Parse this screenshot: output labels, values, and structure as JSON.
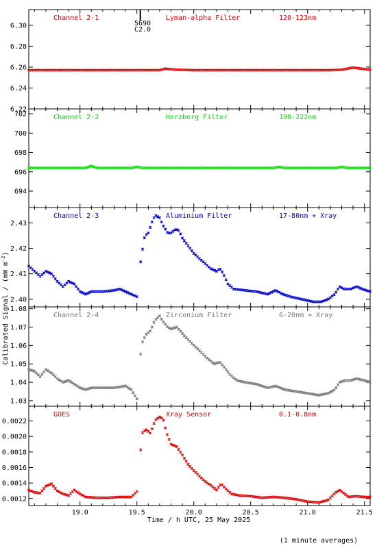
{
  "chart_data": {
    "type": "scatter",
    "xlabel": "Time / h UTC, 25 May 2025",
    "ylabel": "Calibrated Signal / (mW m",
    "ylabel_sup": "-2",
    "ylabel_close": ")",
    "footnote": "(1 minute averages)",
    "xlim": [
      18.55,
      21.55
    ],
    "x_ticks": [
      "19.0",
      "19.5",
      "20.0",
      "20.5",
      "21.0",
      "21.5"
    ],
    "x_tick_values": [
      19.0,
      19.5,
      20.0,
      20.5,
      21.0,
      21.5
    ],
    "marker": {
      "top": "5690",
      "bottom": "C2.0",
      "x": 19.53
    },
    "panels": [
      {
        "channel": "Channel 2-1",
        "filter": "Lyman-alpha Filter",
        "band": "120-123nm",
        "color": "#dd0000",
        "ylim": [
          6.22,
          6.315
        ],
        "y_ticks": [
          "6.22",
          "6.24",
          "6.26",
          "6.28",
          "6.30"
        ],
        "y_tick_values": [
          6.22,
          6.24,
          6.26,
          6.28,
          6.3
        ],
        "points": [
          [
            18.55,
            6.257
          ],
          [
            18.8,
            6.257
          ],
          [
            19.0,
            6.257
          ],
          [
            19.5,
            6.257
          ],
          [
            19.7,
            6.257
          ],
          [
            19.75,
            6.2585
          ],
          [
            19.85,
            6.2575
          ],
          [
            20.0,
            6.257
          ],
          [
            20.5,
            6.257
          ],
          [
            21.0,
            6.257
          ],
          [
            21.2,
            6.257
          ],
          [
            21.3,
            6.2575
          ],
          [
            21.4,
            6.2595
          ],
          [
            21.47,
            6.2585
          ],
          [
            21.55,
            6.2575
          ]
        ]
      },
      {
        "channel": "Channel 2-2",
        "filter": "Herzberg Filter",
        "band": "190-222nm",
        "color": "#00dd00",
        "ylim": [
          692.3,
          702.5
        ],
        "y_ticks": [
          "694",
          "696",
          "698",
          "700",
          "702"
        ],
        "y_tick_values": [
          694,
          696,
          698,
          700,
          702
        ],
        "points": [
          [
            18.55,
            696.4
          ],
          [
            19.05,
            696.4
          ],
          [
            19.1,
            696.6
          ],
          [
            19.15,
            696.4
          ],
          [
            19.45,
            696.4
          ],
          [
            19.5,
            696.5
          ],
          [
            19.55,
            696.4
          ],
          [
            20.0,
            696.4
          ],
          [
            20.7,
            696.4
          ],
          [
            20.75,
            696.5
          ],
          [
            20.8,
            696.4
          ],
          [
            21.25,
            696.4
          ],
          [
            21.3,
            696.5
          ],
          [
            21.35,
            696.4
          ],
          [
            21.55,
            696.4
          ]
        ]
      },
      {
        "channel": "Channel 2-3",
        "filter": "Aluminium Filter",
        "band": "17-80nm + Xray",
        "color": "#0000cc",
        "ylim": [
          2.397,
          2.436
        ],
        "y_ticks": [
          "2.40",
          "2.41",
          "2.42",
          "2.43"
        ],
        "y_tick_values": [
          2.4,
          2.41,
          2.42,
          2.43
        ],
        "gap": [
          19.5,
          19.52
        ],
        "points": [
          [
            18.55,
            2.413
          ],
          [
            18.6,
            2.411
          ],
          [
            18.65,
            2.409
          ],
          [
            18.7,
            2.411
          ],
          [
            18.75,
            2.41
          ],
          [
            18.8,
            2.407
          ],
          [
            18.85,
            2.405
          ],
          [
            18.9,
            2.407
          ],
          [
            18.95,
            2.406
          ],
          [
            19.0,
            2.403
          ],
          [
            19.05,
            2.402
          ],
          [
            19.1,
            2.403
          ],
          [
            19.2,
            2.403
          ],
          [
            19.3,
            2.4035
          ],
          [
            19.35,
            2.404
          ],
          [
            19.4,
            2.403
          ],
          [
            19.45,
            2.402
          ],
          [
            19.5,
            2.401
          ],
          [
            19.52,
            2.41
          ],
          [
            19.54,
            2.417
          ],
          [
            19.57,
            2.425
          ],
          [
            19.6,
            2.426
          ],
          [
            19.63,
            2.43
          ],
          [
            19.66,
            2.433
          ],
          [
            19.7,
            2.432
          ],
          [
            19.73,
            2.429
          ],
          [
            19.77,
            2.426
          ],
          [
            19.8,
            2.426
          ],
          [
            19.84,
            2.4275
          ],
          [
            19.87,
            2.427
          ],
          [
            19.9,
            2.424
          ],
          [
            19.95,
            2.421
          ],
          [
            20.0,
            2.418
          ],
          [
            20.05,
            2.416
          ],
          [
            20.1,
            2.414
          ],
          [
            20.15,
            2.412
          ],
          [
            20.2,
            2.411
          ],
          [
            20.23,
            2.412
          ],
          [
            20.26,
            2.41
          ],
          [
            20.3,
            2.406
          ],
          [
            20.35,
            2.404
          ],
          [
            20.45,
            2.4035
          ],
          [
            20.55,
            2.403
          ],
          [
            20.65,
            2.402
          ],
          [
            20.72,
            2.4035
          ],
          [
            20.78,
            2.402
          ],
          [
            20.85,
            2.401
          ],
          [
            20.95,
            2.4
          ],
          [
            21.05,
            2.399
          ],
          [
            21.12,
            2.399
          ],
          [
            21.18,
            2.4
          ],
          [
            21.24,
            2.402
          ],
          [
            21.28,
            2.405
          ],
          [
            21.32,
            2.404
          ],
          [
            21.38,
            2.404
          ],
          [
            21.43,
            2.405
          ],
          [
            21.48,
            2.404
          ],
          [
            21.55,
            2.403
          ]
        ]
      },
      {
        "channel": "Channel 2-4",
        "filter": "Zirconium Filter",
        "band": "6-20nm + Xray",
        "color": "#777777",
        "ylim": [
          1.027,
          1.081
        ],
        "y_ticks": [
          "1.03",
          "1.04",
          "1.05",
          "1.06",
          "1.07",
          "1.08"
        ],
        "y_tick_values": [
          1.03,
          1.04,
          1.05,
          1.06,
          1.07,
          1.08
        ],
        "gap": [
          19.5,
          19.52
        ],
        "points": [
          [
            18.55,
            1.047
          ],
          [
            18.6,
            1.046
          ],
          [
            18.65,
            1.043
          ],
          [
            18.7,
            1.047
          ],
          [
            18.75,
            1.045
          ],
          [
            18.8,
            1.042
          ],
          [
            18.85,
            1.04
          ],
          [
            18.9,
            1.041
          ],
          [
            18.95,
            1.039
          ],
          [
            19.0,
            1.037
          ],
          [
            19.05,
            1.036
          ],
          [
            19.1,
            1.037
          ],
          [
            19.2,
            1.037
          ],
          [
            19.3,
            1.037
          ],
          [
            19.4,
            1.038
          ],
          [
            19.45,
            1.036
          ],
          [
            19.5,
            1.031
          ],
          [
            19.52,
            1.05
          ],
          [
            19.55,
            1.062
          ],
          [
            19.58,
            1.066
          ],
          [
            19.62,
            1.068
          ],
          [
            19.66,
            1.074
          ],
          [
            19.7,
            1.076
          ],
          [
            19.73,
            1.073
          ],
          [
            19.77,
            1.07
          ],
          [
            19.8,
            1.069
          ],
          [
            19.85,
            1.07
          ],
          [
            19.88,
            1.068
          ],
          [
            19.92,
            1.065
          ],
          [
            19.97,
            1.062
          ],
          [
            20.02,
            1.059
          ],
          [
            20.07,
            1.056
          ],
          [
            20.12,
            1.053
          ],
          [
            20.18,
            1.05
          ],
          [
            20.23,
            1.051
          ],
          [
            20.27,
            1.048
          ],
          [
            20.32,
            1.044
          ],
          [
            20.38,
            1.041
          ],
          [
            20.45,
            1.04
          ],
          [
            20.55,
            1.039
          ],
          [
            20.65,
            1.037
          ],
          [
            20.72,
            1.038
          ],
          [
            20.8,
            1.036
          ],
          [
            20.9,
            1.035
          ],
          [
            21.0,
            1.034
          ],
          [
            21.1,
            1.033
          ],
          [
            21.18,
            1.034
          ],
          [
            21.24,
            1.036
          ],
          [
            21.28,
            1.04
          ],
          [
            21.33,
            1.041
          ],
          [
            21.38,
            1.041
          ],
          [
            21.43,
            1.042
          ],
          [
            21.5,
            1.041
          ],
          [
            21.55,
            1.04
          ]
        ]
      },
      {
        "channel": "GOES",
        "filter": "Xray Sensor",
        "band": "0.1-0.8nm",
        "color": "#dd0000",
        "ylim": [
          0.00111,
          0.00239
        ],
        "y_ticks": [
          "0.0012",
          "0.0014",
          "0.0016",
          "0.0018",
          "0.0020",
          "0.0022"
        ],
        "y_tick_values": [
          0.0012,
          0.0014,
          0.0016,
          0.0018,
          0.002,
          0.0022
        ],
        "gap": [
          19.5,
          19.52
        ],
        "points": [
          [
            18.55,
            0.00131
          ],
          [
            18.6,
            0.00128
          ],
          [
            18.65,
            0.00127
          ],
          [
            18.7,
            0.00136
          ],
          [
            18.75,
            0.00139
          ],
          [
            18.8,
            0.0013
          ],
          [
            18.85,
            0.00126
          ],
          [
            18.9,
            0.00124
          ],
          [
            18.95,
            0.00131
          ],
          [
            19.0,
            0.00126
          ],
          [
            19.05,
            0.00122
          ],
          [
            19.15,
            0.00121
          ],
          [
            19.25,
            0.00121
          ],
          [
            19.35,
            0.00122
          ],
          [
            19.45,
            0.00122
          ],
          [
            19.5,
            0.00129
          ],
          [
            19.52,
            0.00165
          ],
          [
            19.55,
            0.00205
          ],
          [
            19.58,
            0.00209
          ],
          [
            19.62,
            0.00204
          ],
          [
            19.66,
            0.00221
          ],
          [
            19.7,
            0.00225
          ],
          [
            19.73,
            0.00223
          ],
          [
            19.76,
            0.00205
          ],
          [
            19.8,
            0.0019
          ],
          [
            19.85,
            0.00187
          ],
          [
            19.9,
            0.00176
          ],
          [
            19.95,
            0.00164
          ],
          [
            20.0,
            0.00156
          ],
          [
            20.05,
            0.00149
          ],
          [
            20.1,
            0.00142
          ],
          [
            20.15,
            0.00137
          ],
          [
            20.2,
            0.00131
          ],
          [
            20.24,
            0.00139
          ],
          [
            20.28,
            0.00133
          ],
          [
            20.33,
            0.00126
          ],
          [
            20.4,
            0.00124
          ],
          [
            20.5,
            0.00123
          ],
          [
            20.6,
            0.00121
          ],
          [
            20.7,
            0.00122
          ],
          [
            20.8,
            0.00121
          ],
          [
            20.9,
            0.00119
          ],
          [
            21.0,
            0.00116
          ],
          [
            21.1,
            0.00115
          ],
          [
            21.18,
            0.00118
          ],
          [
            21.24,
            0.00127
          ],
          [
            21.28,
            0.00131
          ],
          [
            21.31,
            0.00128
          ],
          [
            21.36,
            0.00122
          ],
          [
            21.42,
            0.00123
          ],
          [
            21.5,
            0.00122
          ],
          [
            21.55,
            0.00122
          ]
        ]
      }
    ]
  }
}
